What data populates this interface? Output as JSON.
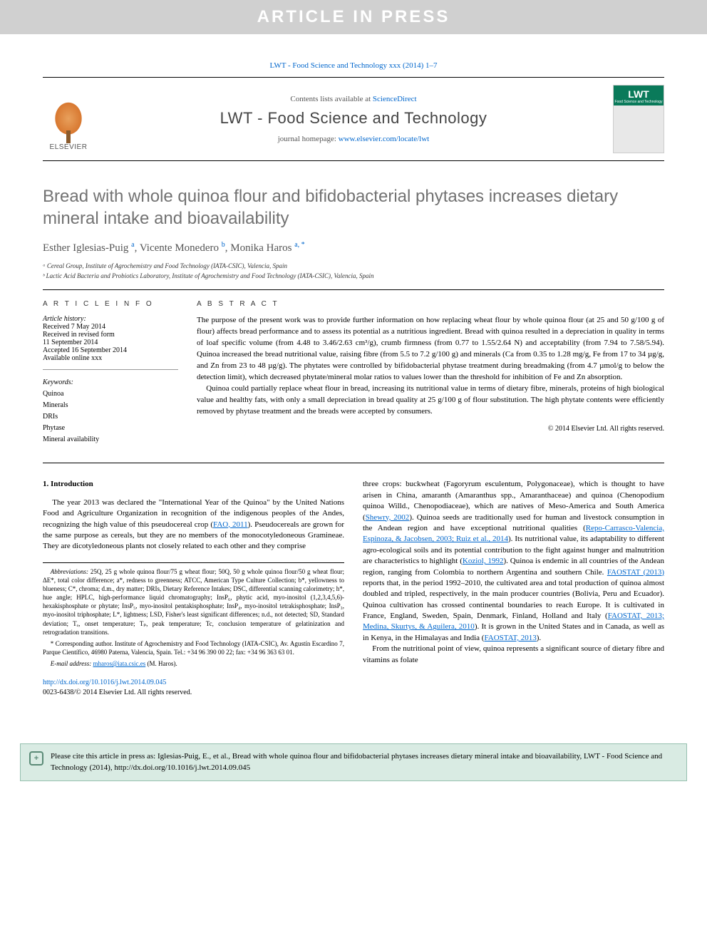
{
  "banner": {
    "text": "ARTICLE IN PRESS"
  },
  "journal_ref": "LWT - Food Science and Technology xxx (2014) 1–7",
  "header": {
    "publisher_name": "ELSEVIER",
    "contents_prefix": "Contents lists available at ",
    "contents_link": "ScienceDirect",
    "journal_name": "LWT - Food Science and Technology",
    "homepage_prefix": "journal homepage: ",
    "homepage_url": "www.elsevier.com/locate/lwt",
    "cover_label": "LWT",
    "cover_sub": "Food Science and Technology"
  },
  "article": {
    "title": "Bread with whole quinoa flour and bifidobacterial phytases increases dietary mineral intake and bioavailability",
    "authors_html": "Esther Iglesias-Puig ᵃ, Vicente Monedero ᵇ, Monika Haros ᵃ· *",
    "author1": "Esther Iglesias-Puig",
    "author1_sup": "a",
    "author2": "Vicente Monedero",
    "author2_sup": "b",
    "author3": "Monika Haros",
    "author3_sup": "a, *",
    "aff_a": "ᵃ Cereal Group, Institute of Agrochemistry and Food Technology (IATA-CSIC), Valencia, Spain",
    "aff_b": "ᵇ Lactic Acid Bacteria and Probiotics Laboratory, Institute of Agrochemistry and Food Technology (IATA-CSIC), Valencia, Spain"
  },
  "info": {
    "head": "A R T I C L E   I N F O",
    "history_label": "Article history:",
    "received": "Received 7 May 2014",
    "revised1": "Received in revised form",
    "revised2": "11 September 2014",
    "accepted": "Accepted 16 September 2014",
    "online": "Available online xxx",
    "kw_label": "Keywords:",
    "kw": [
      "Quinoa",
      "Minerals",
      "DRIs",
      "Phytase",
      "Mineral availability"
    ]
  },
  "abstract": {
    "head": "A B S T R A C T",
    "p1": "The purpose of the present work was to provide further information on how replacing wheat flour by whole quinoa flour (at 25 and 50 g/100 g of flour) affects bread performance and to assess its potential as a nutritious ingredient. Bread with quinoa resulted in a depreciation in quality in terms of loaf specific volume (from 4.48 to 3.46/2.63 cm³/g), crumb firmness (from 0.77 to 1.55/2.64 N) and acceptability (from 7.94 to 7.58/5.94). Quinoa increased the bread nutritional value, raising fibre (from 5.5 to 7.2 g/100 g) and minerals (Ca from 0.35 to 1.28 mg/g, Fe from 17 to 34 µg/g, and Zn from 23 to 48 µg/g). The phytates were controlled by bifidobacterial phytase treatment during breadmaking (from 4.7 µmol/g to below the detection limit), which decreased phytate/mineral molar ratios to values lower than the threshold for inhibition of Fe and Zn absorption.",
    "p2": "Quinoa could partially replace wheat flour in bread, increasing its nutritional value in terms of dietary fibre, minerals, proteins of high biological value and healthy fats, with only a small depreciation in bread quality at 25 g/100 g of flour substitution. The high phytate contents were efficiently removed by phytase treatment and the breads were accepted by consumers.",
    "copyright": "© 2014 Elsevier Ltd. All rights reserved."
  },
  "body": {
    "section_num": "1.",
    "section_title": "Introduction",
    "left_p1_a": "The year 2013 was declared the \"International Year of the Quinoa\" by the United Nations Food and Agriculture Organization in recognition of the indigenous peoples of the Andes, recognizing the high value of this pseudocereal crop (",
    "left_p1_ref1": "FAO, 2011",
    "left_p1_b": "). Pseudocereals are grown for the same purpose as cereals, but they are no members of the monocotyledoneous Gramineae. They are dicotyledoneous plants not closely related to each other and they comprise",
    "right_p1_a": "three crops: buckwheat (Fagoryrum esculentum, Polygonaceae), which is thought to have arisen in China, amaranth (Amaranthus spp., Amaranthaceae) and quinoa (Chenopodium quinoa Willd., Chenopodiaceae), which are natives of Meso-America and South America (",
    "right_p1_ref1": "Shewry, 2002",
    "right_p1_b": "). Quinoa seeds are traditionally used for human and livestock consumption in the Andean region and have exceptional nutritional qualities (",
    "right_p1_ref2": "Repo-Carrasco-Valencia, Espinoza, & Jacobsen, 2003; Ruiz et al., 2014",
    "right_p1_c": "). Its nutritional value, its adaptability to different agro-ecological soils and its potential contribution to the fight against hunger and malnutrition are characteristics to highlight (",
    "right_p1_ref3": "Koziol, 1992",
    "right_p1_d": "). Quinoa is endemic in all countries of the Andean region, ranging from Colombia to northern Argentina and southern Chile. ",
    "right_p1_ref4": "FAOSTAT (2013)",
    "right_p1_e": " reports that, in the period 1992–2010, the cultivated area and total production of quinoa almost doubled and tripled, respectively, in the main producer countries (Bolivia, Peru and Ecuador). Quinoa cultivation has crossed continental boundaries to reach Europe. It is cultivated in France, England, Sweden, Spain, Denmark, Finland, Holland and Italy (",
    "right_p1_ref5": "FAOSTAT, 2013; Medina, Skurtys, & Aguilera, 2010",
    "right_p1_f": "). It is grown in the United States and in Canada, as well as in Kenya, in the Himalayas and India (",
    "right_p1_ref6": "FAOSTAT, 2013",
    "right_p1_g": ").",
    "right_p2": "From the nutritional point of view, quinoa represents a significant source of dietary fibre and vitamins as folate"
  },
  "footnotes": {
    "abbrev_label": "Abbreviations:",
    "abbrev_text": " 25Q, 25 g whole quinoa flour/75 g wheat flour; 50Q, 50 g whole quinoa flour/50 g wheat flour; ΔE*, total color difference; a*, redness to greenness; ATCC, American Type Culture Collection; b*, yellowness to blueness; C*, chroma; d.m., dry matter; DRIs, Dietary Reference Intakes; DSC, differential scanning calorimetry; h*, hue angle; HPLC, high-performance liquid chromatography; InsP₆, phytic acid, myo-inositol (1,2,3,4,5,6)-hexakisphosphate or phytate; InsP₅, myo-inositol pentakisphosphate; InsP₄, myo-inositol tetrakisphosphate; InsP₃, myo-inositol triphosphate; L*, lightness; LSD, Fisher's least significant differences; n.d., not detected; SD, Standard deviation; Tₒ, onset temperature; Tₚ, peak temperature; Tc, conclusion temperature of gelatinization and retrogradation transitions.",
    "corr_label": "* Corresponding author.",
    "corr_text": " Institute of Agrochemistry and Food Technology (IATA-CSIC), Av. Agustín Escardino 7, Parque Científico, 46980 Paterna, Valencia, Spain. Tel.: +34 96 390 00 22; fax: +34 96 363 63 01.",
    "email_label": "E-mail address: ",
    "email": "mharos@iata.csic.es",
    "email_suffix": " (M. Haros)."
  },
  "doi": {
    "url": "http://dx.doi.org/10.1016/j.lwt.2014.09.045",
    "issn": "0023-6438/© 2014 Elsevier Ltd. All rights reserved."
  },
  "citation": {
    "icon": "+",
    "text": "Please cite this article in press as: Iglesias-Puig, E., et al., Bread with whole quinoa flour and bifidobacterial phytases increases dietary mineral intake and bioavailability, LWT - Food Science and Technology (2014), http://dx.doi.org/10.1016/j.lwt.2014.09.045"
  },
  "colors": {
    "link": "#0066cc",
    "banner_bg": "#d0d0d0",
    "banner_fg": "#ffffff",
    "title_gray": "#727272",
    "citation_bg": "#d9ebe3",
    "citation_border": "#96c0af"
  }
}
